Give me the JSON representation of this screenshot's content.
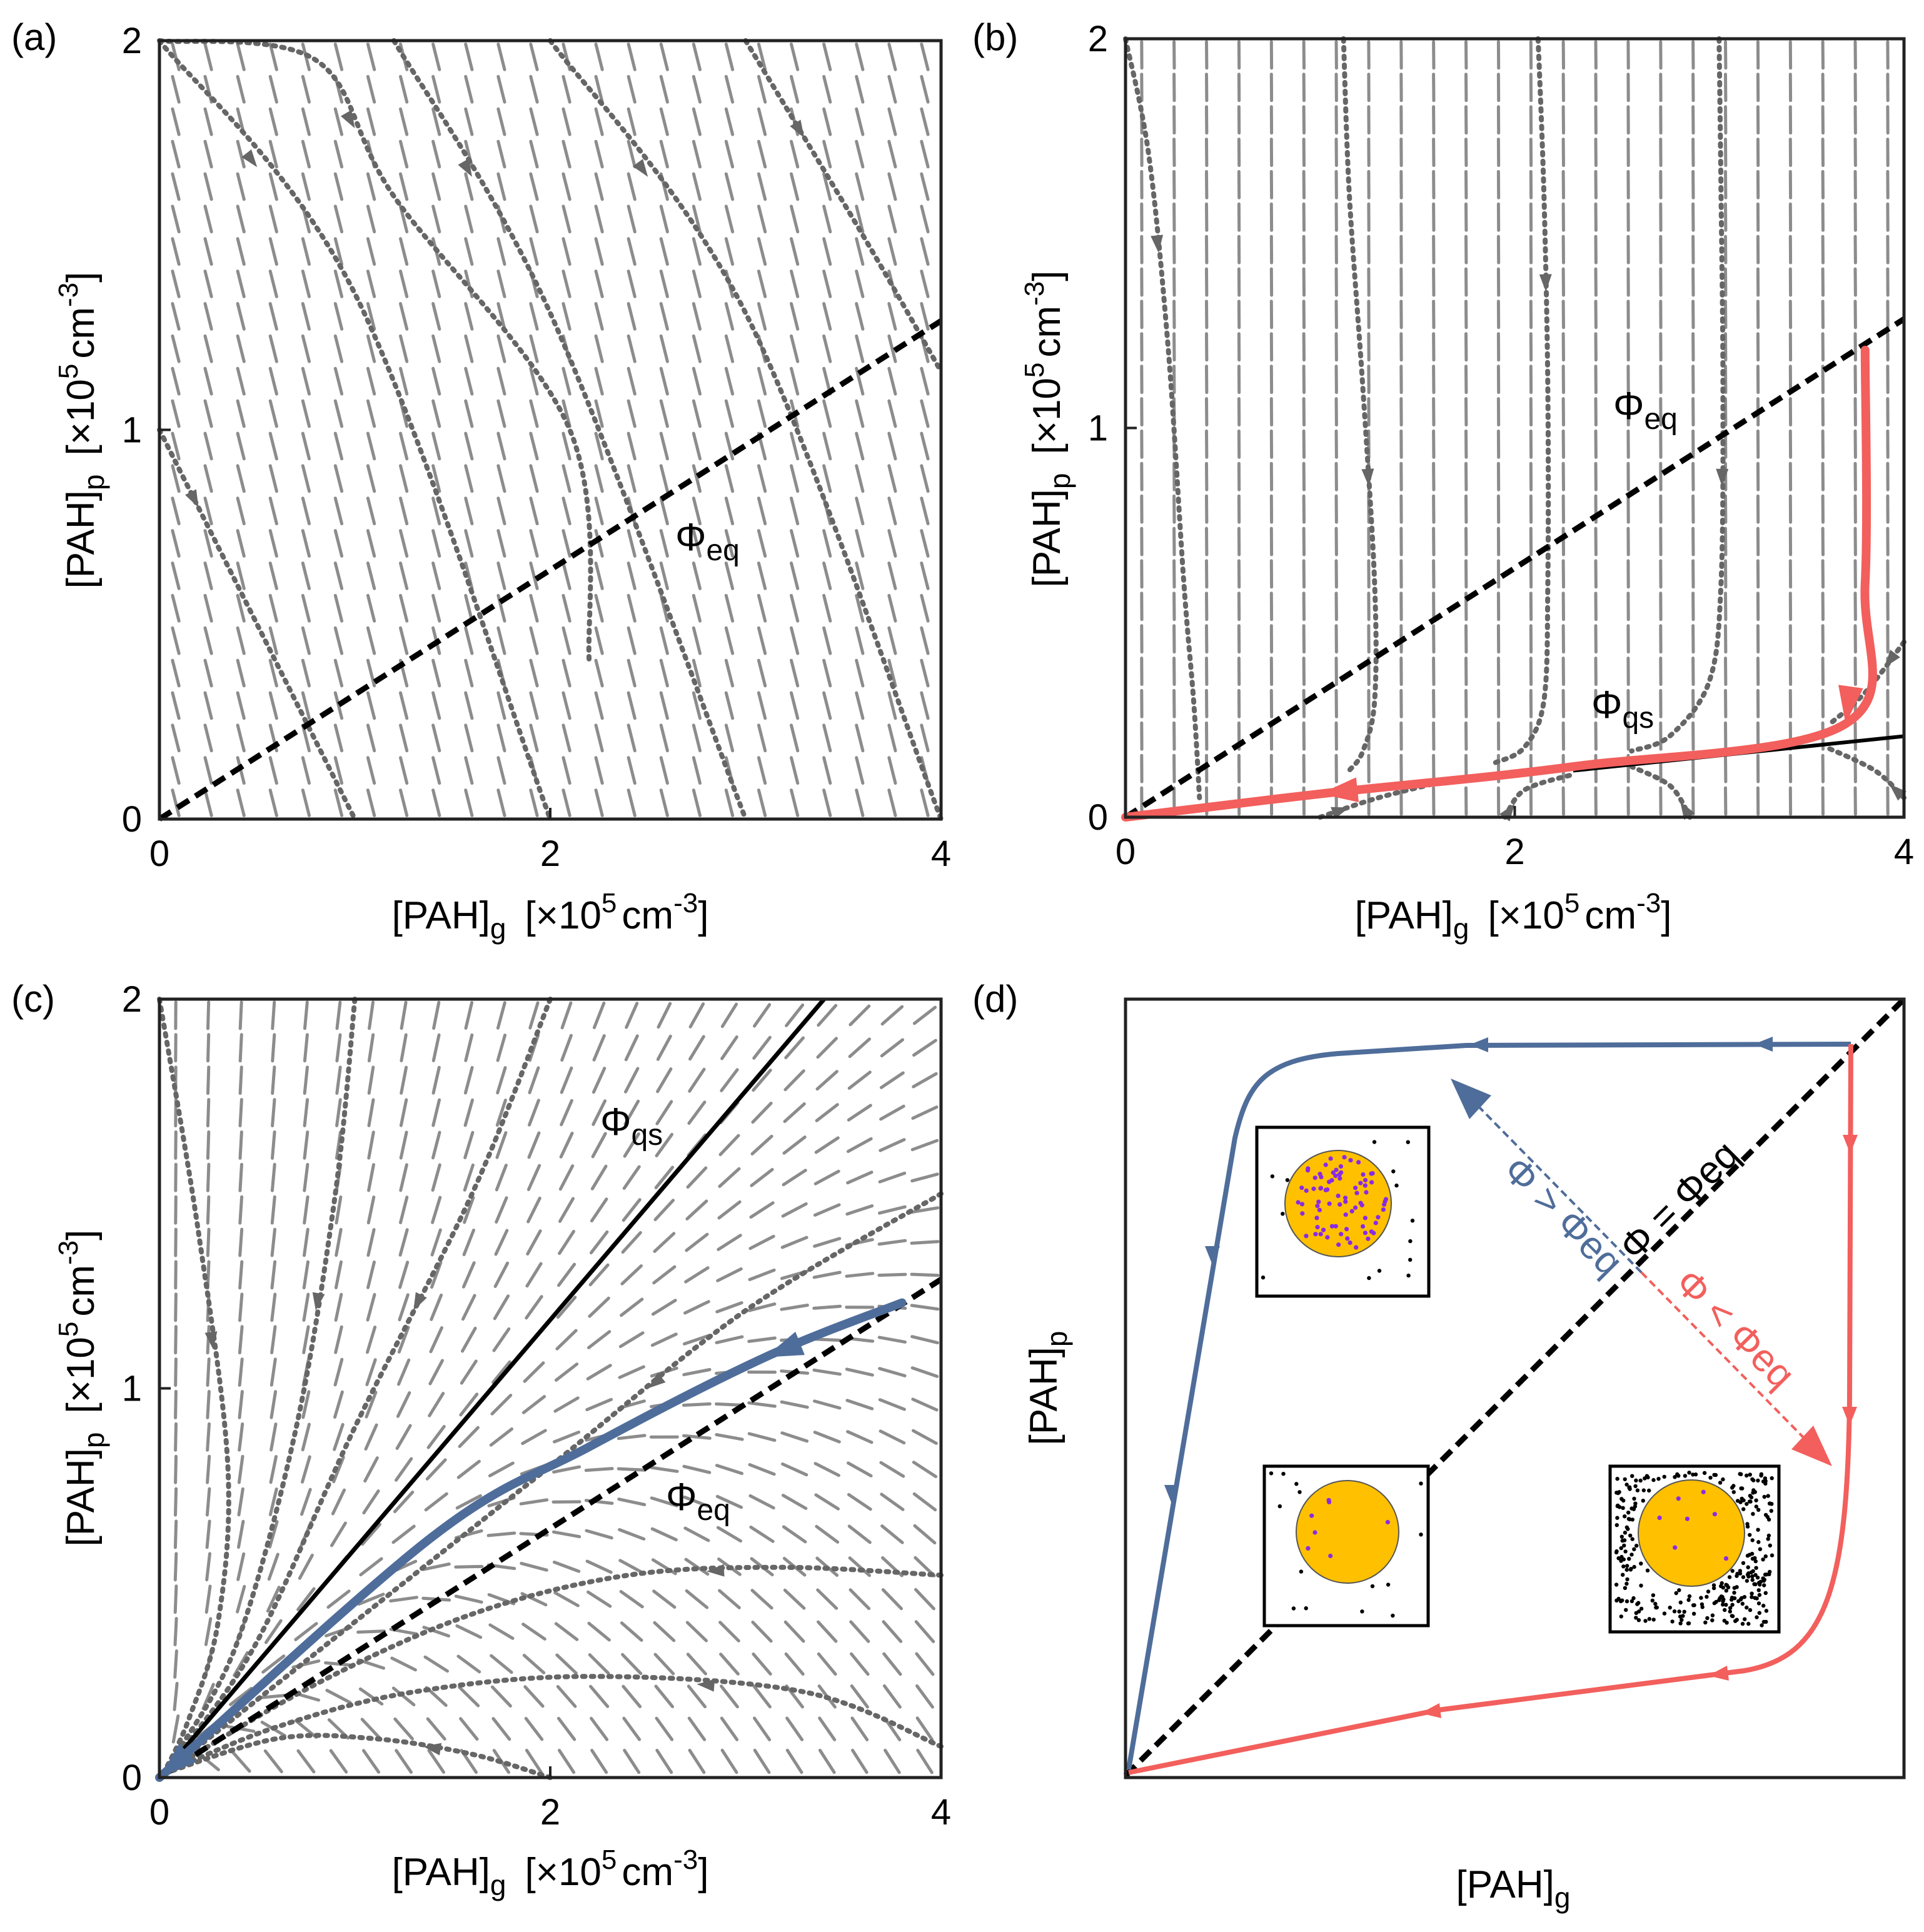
{
  "figure": {
    "colors": {
      "flow": "#666666",
      "field": "#8c8c8c",
      "eq_line": "#000000",
      "red": "#f25f5c",
      "blue": "#4f6d9a",
      "particle": "#ffc000",
      "dot_purple": "#8a2be2"
    }
  },
  "chart_data": [
    {
      "panel": "a",
      "type": "line",
      "panel_label": "(a)",
      "xlabel": {
        "main": "[PAH]",
        "sub": "g",
        "unit_pre": "[×10",
        "unit_exp": "5",
        "unit_post": "cm",
        "unit_exp2": "-3",
        "unit_close": "]"
      },
      "ylabel": {
        "main": "[PAH]",
        "sub": "p",
        "unit_pre": "[×10",
        "unit_exp": "5",
        "unit_post": "cm",
        "unit_exp2": "-3",
        "unit_close": "]"
      },
      "xlim": [
        0,
        4
      ],
      "ylim": [
        0,
        2
      ],
      "xticks": [
        0,
        2,
        4
      ],
      "yticks": [
        0,
        1,
        2
      ],
      "xtick_labels": [
        "0",
        "2",
        "4"
      ],
      "ytick_labels": [
        "0",
        "1",
        "2"
      ],
      "phi_eq": {
        "text": "Φ",
        "sub": "eq",
        "slope": 0.32
      },
      "series": [
        {
          "style": "dotted-flow",
          "points": [
            [
              0,
              2
            ],
            [
              0.8,
              1.95
            ],
            [
              1.2,
              1.6
            ],
            [
              2.1,
              1.0
            ],
            [
              2.2,
              0.4
            ]
          ]
        },
        {
          "style": "dotted-flow",
          "points": [
            [
              0,
              1.0
            ],
            [
              0.4,
              0.6
            ],
            [
              1.0,
              0
            ]
          ]
        },
        {
          "style": "dotted-flow",
          "points": [
            [
              0,
              2
            ],
            [
              1.0,
              1.35
            ],
            [
              2.0,
              0
            ]
          ]
        },
        {
          "style": "dotted-flow",
          "points": [
            [
              1.2,
              2
            ],
            [
              2.0,
              1.3
            ],
            [
              3.0,
              0
            ]
          ]
        },
        {
          "style": "dotted-flow",
          "points": [
            [
              2.0,
              2
            ],
            [
              3.0,
              1.3
            ],
            [
              4.0,
              0
            ]
          ]
        },
        {
          "style": "dotted-flow",
          "points": [
            [
              3.0,
              2
            ],
            [
              3.6,
              1.5
            ],
            [
              4.0,
              1.15
            ]
          ]
        }
      ]
    },
    {
      "panel": "b",
      "type": "line",
      "panel_label": "(b)",
      "xlabel": {
        "main": "[PAH]",
        "sub": "g",
        "unit_pre": "[×10",
        "unit_exp": "5",
        "unit_post": "cm",
        "unit_exp2": "-3",
        "unit_close": "]"
      },
      "ylabel": {
        "main": "[PAH]",
        "sub": "p",
        "unit_pre": "[×10",
        "unit_exp": "5",
        "unit_post": "cm",
        "unit_exp2": "-3",
        "unit_close": "]"
      },
      "xlim": [
        0,
        4
      ],
      "ylim": [
        0,
        2
      ],
      "xticks": [
        0,
        2,
        4
      ],
      "yticks": [
        0,
        1,
        2
      ],
      "xtick_labels": [
        "0",
        "2",
        "4"
      ],
      "ytick_labels": [
        "0",
        "1",
        "2"
      ],
      "phi_eq": {
        "text": "Φ",
        "sub": "eq",
        "slope": 0.32
      },
      "phi_qs": {
        "text": "Φ",
        "sub": "qs",
        "slope": 0.052
      },
      "trajectory": {
        "color": "red",
        "points": [
          [
            3.8,
            1.2
          ],
          [
            3.8,
            0.6
          ],
          [
            3.7,
            0.24
          ],
          [
            2.3,
            0.13
          ],
          [
            1.0,
            0.06
          ],
          [
            0,
            0
          ]
        ]
      }
    },
    {
      "panel": "c",
      "type": "line",
      "panel_label": "(c)",
      "xlabel": {
        "main": "[PAH]",
        "sub": "g",
        "unit_pre": "[×10",
        "unit_exp": "5",
        "unit_post": "cm",
        "unit_exp2": "-3",
        "unit_close": "]"
      },
      "ylabel": {
        "main": "[PAH]",
        "sub": "p",
        "unit_pre": "[×10",
        "unit_exp": "5",
        "unit_post": "cm",
        "unit_exp2": "-3",
        "unit_close": "]"
      },
      "xlim": [
        0,
        4
      ],
      "ylim": [
        0,
        2
      ],
      "xticks": [
        0,
        2,
        4
      ],
      "yticks": [
        0,
        1,
        2
      ],
      "xtick_labels": [
        "0",
        "2",
        "4"
      ],
      "ytick_labels": [
        "0",
        "1",
        "2"
      ],
      "phi_eq": {
        "text": "Φ",
        "sub": "eq",
        "slope": 0.32
      },
      "phi_qs": {
        "text": "Φ",
        "sub": "qs",
        "slope": 0.588
      },
      "trajectory": {
        "color": "blue",
        "points": [
          [
            3.8,
            1.22
          ],
          [
            3.1,
            1.08
          ],
          [
            2.2,
            0.85
          ],
          [
            1.4,
            0.62
          ],
          [
            0,
            0
          ]
        ]
      }
    },
    {
      "panel": "d",
      "type": "line",
      "panel_label": "(d)",
      "xlabel": {
        "main": "[PAH]",
        "sub": "g"
      },
      "ylabel": {
        "main": "[PAH]",
        "sub": "p"
      },
      "phi_eq_label": "Φ = Φeq",
      "gt_label": "Φ > Φeq",
      "lt_label": "Φ < Φeq",
      "inset_high_particle_dots": 80,
      "inset_center_particle_dots": 7,
      "inset_low_gas_dots": 300
    }
  ]
}
